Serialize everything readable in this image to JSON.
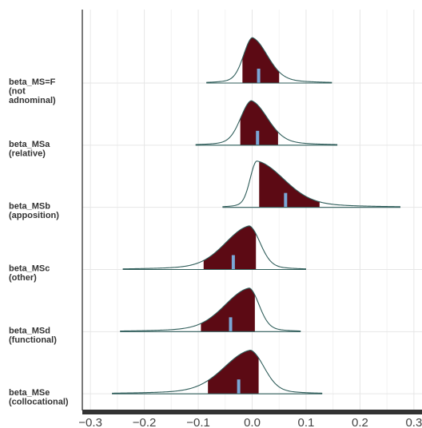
{
  "chart_data": {
    "type": "area",
    "subtype": "ridgeline-posterior-densities",
    "x_ticks": [
      "-0.3",
      "-0.2",
      "-0.1",
      "0.0",
      "0.1",
      "0.2",
      "0.3"
    ],
    "x_tick_values": [
      -0.3,
      -0.2,
      -0.1,
      0.0,
      0.1,
      0.2,
      0.3
    ],
    "xlim": [
      -0.315,
      0.315
    ],
    "grid": true,
    "series": [
      {
        "line1": "beta_MS=F",
        "line2": "(not",
        "line3": "adnominal)",
        "median": 0.012,
        "ci_inner": [
          -0.018,
          0.05
        ],
        "range": [
          -0.085,
          0.148
        ],
        "mode": 0.0,
        "scale": 1.0
      },
      {
        "line1": "beta_MSa",
        "line2": "(relative)",
        "line3": "",
        "median": 0.01,
        "ci_inner": [
          -0.022,
          0.048
        ],
        "range": [
          -0.105,
          0.158
        ],
        "mode": -0.002,
        "scale": 0.98
      },
      {
        "line1": "beta_MSb",
        "line2": "(apposition)",
        "line3": "",
        "median": 0.062,
        "ci_inner": [
          0.013,
          0.125
        ],
        "range": [
          -0.055,
          0.275
        ],
        "mode": 0.008,
        "scale": 1.02
      },
      {
        "line1": "beta_MSc",
        "line2": "(other)",
        "line3": "",
        "median": -0.035,
        "ci_inner": [
          -0.09,
          0.007
        ],
        "range": [
          -0.24,
          0.1
        ],
        "mode": -0.005,
        "scale": 0.96
      },
      {
        "line1": "beta_MSd",
        "line2": "(functional)",
        "line3": "",
        "median": -0.04,
        "ci_inner": [
          -0.095,
          0.005
        ],
        "range": [
          -0.245,
          0.09
        ],
        "mode": -0.005,
        "scale": 0.96
      },
      {
        "line1": "beta_MSe",
        "line2": "(collocational)",
        "line3": "",
        "median": -0.025,
        "ci_inner": [
          -0.082,
          0.012
        ],
        "range": [
          -0.26,
          0.13
        ],
        "mode": -0.003,
        "scale": 0.96
      }
    ]
  },
  "colors": {
    "fill": "#5c0a14",
    "outline": "#2f5d5a",
    "median": "#7aa7d6",
    "grid": "#e6e6e6",
    "axis": "#333333",
    "label": "#333333"
  }
}
